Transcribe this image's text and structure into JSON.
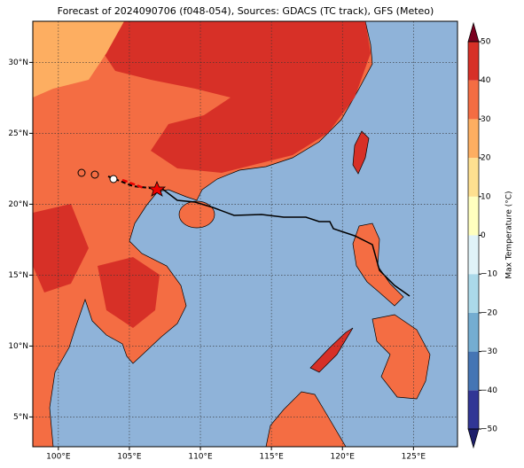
{
  "map": {
    "title": "Forecast of 2024090706 (f048-054), Sources: GDACS (TC track), GFS (Meteo)",
    "xlim": [
      98.2,
      128.1
    ],
    "ylim": [
      2.9,
      32.9
    ],
    "xticks": [
      {
        "value": 100,
        "label": "100°E"
      },
      {
        "value": 105,
        "label": "105°E"
      },
      {
        "value": 110,
        "label": "110°E"
      },
      {
        "value": 115,
        "label": "115°E"
      },
      {
        "value": 120,
        "label": "120°E"
      },
      {
        "value": 125,
        "label": "125°E"
      }
    ],
    "yticks": [
      {
        "value": 5,
        "label": "5°N"
      },
      {
        "value": 10,
        "label": "10°N"
      },
      {
        "value": 15,
        "label": "15°N"
      },
      {
        "value": 20,
        "label": "20°N"
      },
      {
        "value": 25,
        "label": "25°N"
      },
      {
        "value": 30,
        "label": "30°N"
      }
    ],
    "ocean_color": "#8fb3d9",
    "grid": true
  },
  "colorbar": {
    "label": "Max Temperature (°C)",
    "lim": [
      -50,
      50
    ],
    "ticks": [
      {
        "value": -50,
        "label": "−50"
      },
      {
        "value": -40,
        "label": "−40"
      },
      {
        "value": -30,
        "label": "−30"
      },
      {
        "value": -20,
        "label": "−20"
      },
      {
        "value": -10,
        "label": "−10"
      },
      0,
      10,
      20,
      30,
      40,
      50
    ],
    "colors": [
      "#313695",
      "#4575b4",
      "#74add1",
      "#abd9e9",
      "#e0f3f8",
      "#ffffbf",
      "#fee090",
      "#fdae61",
      "#f46d43",
      "#d73027"
    ],
    "extend_colors": [
      "#1e1f6b",
      "#7a0020"
    ]
  }
}
